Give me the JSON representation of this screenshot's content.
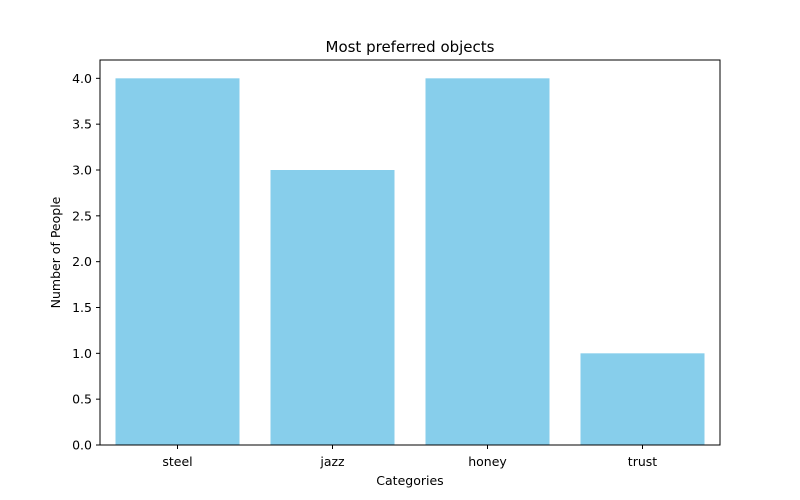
{
  "chart_data": {
    "type": "bar",
    "title": "Most preferred objects",
    "xlabel": "Categories",
    "ylabel": "Number of People",
    "categories": [
      "steel",
      "jazz",
      "honey",
      "trust"
    ],
    "values": [
      4,
      3,
      4,
      1
    ],
    "ylim": [
      0,
      4.2
    ],
    "yticks": [
      "0.0",
      "0.5",
      "1.0",
      "1.5",
      "2.0",
      "2.5",
      "3.0",
      "3.5",
      "4.0"
    ],
    "bar_color": "#87ceeb",
    "grid": false,
    "legend": "none"
  }
}
